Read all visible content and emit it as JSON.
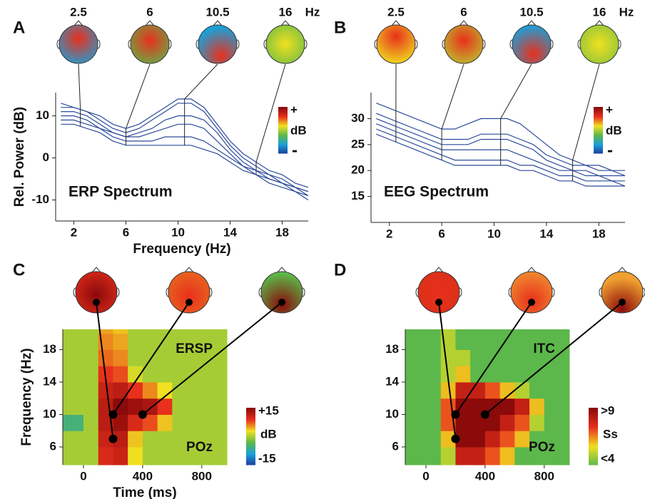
{
  "chart_data": [
    {
      "type": "line",
      "panel": "A",
      "title": "ERP Spectrum",
      "xlabel": "Frequency (Hz)",
      "ylabel": "Rel. Power (dB)",
      "xlim": [
        0.6,
        20
      ],
      "ylim": [
        -15,
        15.5
      ],
      "xticks": [
        2,
        6,
        10,
        14,
        18
      ],
      "yticks": [
        -10,
        0,
        10
      ],
      "markers": [
        2.5,
        6,
        10.5,
        16
      ],
      "marker_unit": "Hz",
      "colorbar": {
        "top": "+",
        "label": "dB",
        "bottom": "-",
        "colors": [
          "#1f3b9e",
          "#1aa0d8",
          "#5cb84a",
          "#f0e020",
          "#e8301c",
          "#8b0a0a"
        ]
      },
      "x": [
        1,
        2,
        3,
        4,
        5,
        6,
        7,
        8,
        9,
        10,
        11,
        12,
        13,
        14,
        15,
        16,
        17,
        18,
        19,
        20
      ],
      "series": [
        {
          "color": "#2b4a9a",
          "values": [
            13,
            12,
            11,
            10,
            8,
            7,
            8,
            10,
            12,
            14,
            14,
            12,
            8,
            4,
            1,
            -1,
            -3,
            -4,
            -6,
            -7
          ]
        },
        {
          "color": "#2b4a9a",
          "values": [
            12,
            12,
            11,
            9,
            7,
            6,
            7,
            9,
            11,
            13,
            13,
            11,
            7,
            3,
            0,
            -2,
            -4,
            -5,
            -7,
            -8
          ]
        },
        {
          "color": "#2b4a9a",
          "values": [
            11,
            11,
            10,
            8,
            6,
            5,
            6,
            7,
            9,
            10,
            10,
            9,
            6,
            2,
            -1,
            -3,
            -4,
            -6,
            -7,
            -8
          ]
        },
        {
          "color": "#2b4a9a",
          "values": [
            10,
            10,
            9,
            7,
            6,
            5,
            5,
            6,
            7,
            8,
            8,
            7,
            4,
            1,
            -2,
            -3,
            -5,
            -6,
            -7,
            -9
          ]
        },
        {
          "color": "#2b4a9a",
          "values": [
            9,
            9,
            8,
            7,
            5,
            4,
            4,
            4,
            5,
            5,
            5,
            4,
            2,
            0,
            -2,
            -4,
            -5,
            -6,
            -8,
            -9
          ]
        },
        {
          "color": "#2b4a9a",
          "values": [
            8,
            8,
            7,
            6,
            4,
            3,
            3,
            3,
            3,
            3,
            3,
            2,
            1,
            -1,
            -3,
            -4,
            -6,
            -7,
            -8,
            -10
          ]
        }
      ]
    },
    {
      "type": "line",
      "panel": "B",
      "title": "EEG Spectrum",
      "xlim": [
        0.6,
        20
      ],
      "ylim": [
        10,
        35
      ],
      "xticks": [
        2,
        6,
        10,
        14,
        18
      ],
      "yticks": [
        15,
        20,
        25,
        30
      ],
      "markers": [
        2.5,
        6,
        10.5,
        16
      ],
      "marker_unit": "Hz",
      "colorbar": {
        "top": "+",
        "label": "dB",
        "bottom": "-",
        "colors": [
          "#1f3b9e",
          "#1aa0d8",
          "#5cb84a",
          "#f0e020",
          "#e8301c",
          "#8b0a0a"
        ]
      },
      "x": [
        1,
        2,
        3,
        4,
        5,
        6,
        7,
        8,
        9,
        10,
        11,
        12,
        13,
        14,
        15,
        16,
        17,
        18,
        19,
        20
      ],
      "series": [
        {
          "color": "#2b4a9a",
          "values": [
            33,
            32,
            31,
            30,
            29,
            28,
            28,
            29,
            30,
            30,
            30,
            29,
            27,
            25,
            23,
            22,
            21,
            21,
            20,
            20
          ]
        },
        {
          "color": "#2b4a9a",
          "values": [
            31,
            30,
            29,
            28,
            27,
            26,
            26,
            26,
            27,
            27,
            27,
            26,
            25,
            23,
            22,
            21,
            21,
            20,
            20,
            19
          ]
        },
        {
          "color": "#2b4a9a",
          "values": [
            30,
            29,
            28,
            27,
            26,
            25,
            25,
            25,
            26,
            26,
            26,
            25,
            24,
            22,
            21,
            20,
            20,
            19,
            19,
            19
          ]
        },
        {
          "color": "#2b4a9a",
          "values": [
            29,
            28,
            27,
            26,
            25,
            24,
            24,
            24,
            24,
            24,
            24,
            23,
            22,
            21,
            20,
            20,
            19,
            19,
            18,
            18
          ]
        },
        {
          "color": "#2b4a9a",
          "values": [
            28,
            27,
            26,
            25,
            24,
            23,
            22,
            22,
            22,
            22,
            22,
            21,
            21,
            20,
            19,
            19,
            18,
            18,
            18,
            17
          ]
        },
        {
          "color": "#2b4a9a",
          "values": [
            27,
            26,
            25,
            24,
            23,
            22,
            21,
            21,
            21,
            21,
            21,
            20,
            20,
            19,
            18,
            18,
            17,
            17,
            17,
            17
          ]
        }
      ]
    },
    {
      "type": "heatmap",
      "panel": "C",
      "title": "ERSP",
      "channel": "POz",
      "xlabel": "Time (ms)",
      "ylabel": "Frequency (Hz)",
      "xlim": [
        -140,
        970
      ],
      "ylim": [
        3.8,
        20.5
      ],
      "xticks": [
        0,
        400,
        800
      ],
      "yticks": [
        6,
        10,
        14,
        18
      ],
      "xbins": [
        -140,
        0,
        100,
        200,
        300,
        400,
        500,
        600,
        700,
        800,
        970
      ],
      "ybins": [
        3.8,
        6,
        8,
        10,
        12,
        14,
        16,
        18,
        20,
        20.5
      ],
      "z": [
        [
          0,
          0,
          10,
          11,
          3,
          0,
          0,
          0,
          0,
          0
        ],
        [
          0,
          0,
          11,
          12,
          4,
          0,
          0,
          0,
          0,
          0
        ],
        [
          -5,
          0,
          12,
          14,
          10,
          8,
          4,
          0,
          0,
          0
        ],
        [
          0,
          0,
          12,
          15,
          14,
          13,
          9,
          0,
          0,
          0
        ],
        [
          0,
          0,
          11,
          12,
          9,
          6,
          3,
          0,
          0,
          0
        ],
        [
          0,
          0,
          9,
          8,
          2,
          0,
          0,
          0,
          0,
          0
        ],
        [
          0,
          0,
          7,
          6,
          0,
          0,
          0,
          0,
          0,
          0
        ],
        [
          0,
          0,
          6,
          5,
          0,
          0,
          0,
          0,
          0,
          0
        ],
        [
          0,
          0,
          5,
          4,
          0,
          0,
          0,
          0,
          0,
          0
        ]
      ],
      "points": {
        "x": [
          200,
          200,
          400
        ],
        "y": [
          7,
          10,
          10
        ]
      },
      "colorbar": {
        "lim": [
          -15,
          15
        ],
        "ticks": [
          {
            "value": 15,
            "label": "+15"
          },
          {
            "value": -15,
            "label": "-15"
          }
        ],
        "label": "dB",
        "colors": [
          "#1f3b9e",
          "#1aa0d8",
          "#5cb84a",
          "#f0e020",
          "#e8301c",
          "#8b0a0a"
        ]
      }
    },
    {
      "type": "heatmap",
      "panel": "D",
      "title": "ITC",
      "channel": "POz",
      "xlim": [
        -140,
        970
      ],
      "ylim": [
        3.8,
        20.5
      ],
      "xticks": [
        0,
        400,
        800
      ],
      "yticks": [
        6,
        10,
        14,
        18
      ],
      "xbins": [
        -140,
        0,
        100,
        200,
        300,
        400,
        500,
        600,
        700,
        800,
        970
      ],
      "ybins": [
        3.8,
        6,
        8,
        10,
        12,
        14,
        16,
        18,
        20,
        20.5
      ],
      "z": [
        [
          4,
          4,
          5,
          8,
          8,
          7,
          6,
          4,
          4,
          4
        ],
        [
          4,
          4,
          6,
          9,
          9,
          8,
          7,
          6,
          4,
          4
        ],
        [
          4,
          4,
          7,
          9,
          9,
          9,
          8,
          7,
          5,
          4
        ],
        [
          4,
          4,
          7,
          9,
          9,
          9,
          9,
          8,
          6,
          4
        ],
        [
          4,
          4,
          6,
          8,
          8,
          7,
          6,
          5,
          4,
          4
        ],
        [
          4,
          4,
          5,
          6,
          4,
          4,
          4,
          4,
          4,
          4
        ],
        [
          4,
          4,
          5,
          5,
          4,
          4,
          4,
          4,
          4,
          4
        ],
        [
          4,
          4,
          5,
          4,
          4,
          4,
          4,
          4,
          4,
          4
        ],
        [
          4,
          4,
          5,
          4,
          4,
          4,
          4,
          4,
          4,
          4
        ]
      ],
      "points": {
        "x": [
          200,
          200,
          400
        ],
        "y": [
          7,
          10,
          10
        ]
      },
      "colorbar": {
        "lim": [
          4,
          9
        ],
        "ticks": [
          {
            "value": 9,
            "label": ">9"
          },
          {
            "value": 4,
            "label": "<4"
          }
        ],
        "label": "Ss",
        "colors": [
          "#5cb84a",
          "#f0e020",
          "#e8301c",
          "#8b0a0a"
        ]
      }
    }
  ]
}
